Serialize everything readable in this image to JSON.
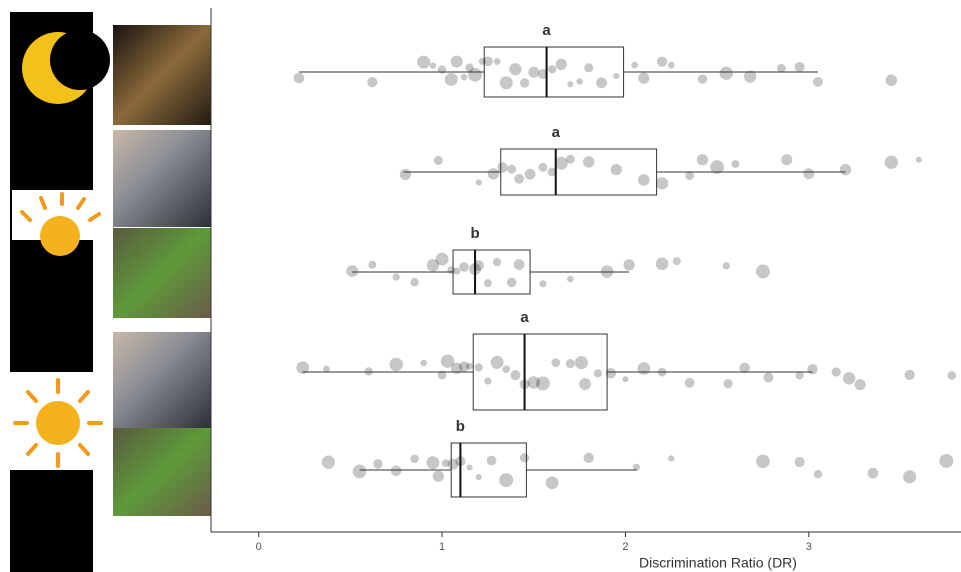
{
  "chart_data": {
    "type": "boxplot",
    "x_label": "Discrimination Ratio (DR)",
    "xlim": [
      -0.26,
      3.83
    ],
    "xticks": [
      0,
      1,
      2,
      3
    ],
    "groups": [
      {
        "letter": "a",
        "whisker_low": 0.22,
        "q1": 1.23,
        "median": 1.57,
        "q3": 1.99,
        "whisker_high": 3.05,
        "points": [
          0.22,
          0.62,
          0.9,
          0.95,
          1.0,
          1.05,
          1.08,
          1.12,
          1.15,
          1.18,
          1.22,
          1.25,
          1.3,
          1.35,
          1.4,
          1.45,
          1.5,
          1.55,
          1.6,
          1.65,
          1.7,
          1.75,
          1.8,
          1.87,
          1.95,
          2.05,
          2.1,
          2.2,
          2.25,
          2.42,
          2.55,
          2.68,
          2.85,
          2.95,
          3.05,
          3.45
        ]
      },
      {
        "letter": "a",
        "whisker_low": 0.79,
        "q1": 1.32,
        "median": 1.62,
        "q3": 2.17,
        "whisker_high": 3.2,
        "points": [
          0.8,
          0.98,
          1.2,
          1.28,
          1.33,
          1.38,
          1.42,
          1.48,
          1.55,
          1.6,
          1.65,
          1.7,
          1.8,
          1.95,
          2.1,
          2.2,
          2.35,
          2.42,
          2.5,
          2.6,
          2.88,
          3.0,
          3.2,
          3.45,
          3.6
        ]
      },
      {
        "letter": "b",
        "whisker_low": 0.51,
        "q1": 1.06,
        "median": 1.18,
        "q3": 1.48,
        "whisker_high": 2.02,
        "points": [
          0.51,
          0.62,
          0.75,
          0.85,
          0.95,
          1.0,
          1.05,
          1.08,
          1.12,
          1.18,
          1.2,
          1.25,
          1.3,
          1.38,
          1.42,
          1.55,
          1.7,
          1.9,
          2.02,
          2.2,
          2.28,
          2.55,
          2.75
        ]
      },
      {
        "letter": "a",
        "whisker_low": 0.24,
        "q1": 1.17,
        "median": 1.45,
        "q3": 1.9,
        "whisker_high": 3.02,
        "points": [
          0.24,
          0.37,
          0.6,
          0.75,
          0.9,
          1.0,
          1.03,
          1.08,
          1.12,
          1.15,
          1.2,
          1.25,
          1.3,
          1.35,
          1.4,
          1.45,
          1.5,
          1.55,
          1.62,
          1.7,
          1.76,
          1.78,
          1.85,
          1.92,
          2.0,
          2.1,
          2.2,
          2.35,
          2.56,
          2.65,
          2.78,
          2.95,
          3.02,
          3.15,
          3.22,
          3.28,
          3.55,
          3.78
        ]
      },
      {
        "letter": "b",
        "whisker_low": 0.55,
        "q1": 1.05,
        "median": 1.1,
        "q3": 1.46,
        "whisker_high": 2.06,
        "points": [
          0.38,
          0.55,
          0.65,
          0.75,
          0.85,
          0.95,
          0.98,
          1.02,
          1.06,
          1.1,
          1.15,
          1.2,
          1.27,
          1.35,
          1.45,
          1.6,
          1.8,
          2.06,
          2.25,
          2.75,
          2.95,
          3.05,
          3.35,
          3.55,
          3.75
        ]
      }
    ]
  }
}
